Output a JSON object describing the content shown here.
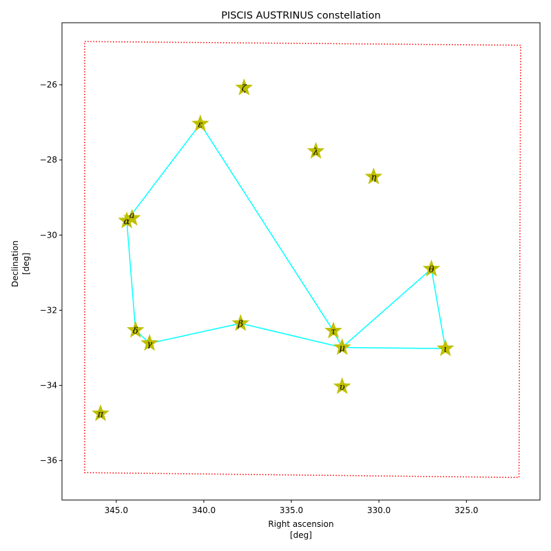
{
  "chart_data": {
    "type": "scatter",
    "title": "PISCIS AUSTRINUS constellation",
    "xlabel": "Right ascension",
    "xlabel_unit": "[deg]",
    "ylabel": "Declination",
    "ylabel_unit": "[deg]",
    "xlim": [
      348.1,
      320.8
    ],
    "ylim": [
      -37.05,
      -24.35
    ],
    "x_inverted": true,
    "x_ticks": [
      345.0,
      340.0,
      335.0,
      330.0,
      325.0
    ],
    "x_tick_labels": [
      "345.0",
      "340.0",
      "335.0",
      "330.0",
      "325.0"
    ],
    "y_ticks": [
      -26,
      -28,
      -30,
      -32,
      -34,
      -36
    ],
    "y_tick_labels": [
      "−26",
      "−28",
      "−30",
      "−32",
      "−34",
      "−36"
    ],
    "grid": false,
    "colors": {
      "star": "#bfbf00",
      "line": "#00ffff",
      "boundary": "#ff0000"
    },
    "stars": [
      {
        "label": "α",
        "ra": 344.4,
        "dec": -29.62
      },
      {
        "label": "a",
        "ra": 344.1,
        "dec": -29.55
      },
      {
        "label": "β",
        "ra": 337.9,
        "dec": -32.35
      },
      {
        "label": "γ",
        "ra": 343.1,
        "dec": -32.88
      },
      {
        "label": "δ",
        "ra": 343.9,
        "dec": -32.53
      },
      {
        "label": "ε",
        "ra": 340.2,
        "dec": -27.04
      },
      {
        "label": "ζ",
        "ra": 337.7,
        "dec": -26.08
      },
      {
        "label": "η",
        "ra": 330.3,
        "dec": -28.45
      },
      {
        "label": "θ",
        "ra": 327.0,
        "dec": -30.9
      },
      {
        "label": "ι",
        "ra": 326.2,
        "dec": -33.02
      },
      {
        "label": "λ",
        "ra": 333.6,
        "dec": -27.77
      },
      {
        "label": "μ",
        "ra": 332.1,
        "dec": -32.99
      },
      {
        "label": "τ",
        "ra": 332.6,
        "dec": -32.55
      },
      {
        "label": "υ",
        "ra": 332.1,
        "dec": -34.03
      },
      {
        "label": "π",
        "ra": 345.9,
        "dec": -34.75
      }
    ],
    "lines": [
      [
        [
          344.4,
          -29.62
        ],
        [
          340.2,
          -27.04
        ]
      ],
      [
        [
          340.2,
          -27.04
        ],
        [
          332.6,
          -32.55
        ]
      ],
      [
        [
          332.6,
          -32.55
        ],
        [
          332.1,
          -32.99
        ]
      ],
      [
        [
          332.1,
          -32.99
        ],
        [
          327.0,
          -30.9
        ]
      ],
      [
        [
          327.0,
          -30.9
        ],
        [
          326.2,
          -33.02
        ]
      ],
      [
        [
          326.2,
          -33.02
        ],
        [
          332.1,
          -32.99
        ]
      ],
      [
        [
          332.1,
          -32.99
        ],
        [
          337.9,
          -32.35
        ]
      ],
      [
        [
          337.9,
          -32.35
        ],
        [
          343.1,
          -32.88
        ]
      ],
      [
        [
          343.1,
          -32.88
        ],
        [
          343.9,
          -32.53
        ]
      ],
      [
        [
          343.9,
          -32.53
        ],
        [
          344.4,
          -29.62
        ]
      ]
    ],
    "boundary": [
      [
        346.8,
        -24.85
      ],
      [
        321.9,
        -24.95
      ],
      [
        322.0,
        -36.45
      ],
      [
        346.8,
        -36.32
      ],
      [
        346.8,
        -24.85
      ]
    ]
  }
}
